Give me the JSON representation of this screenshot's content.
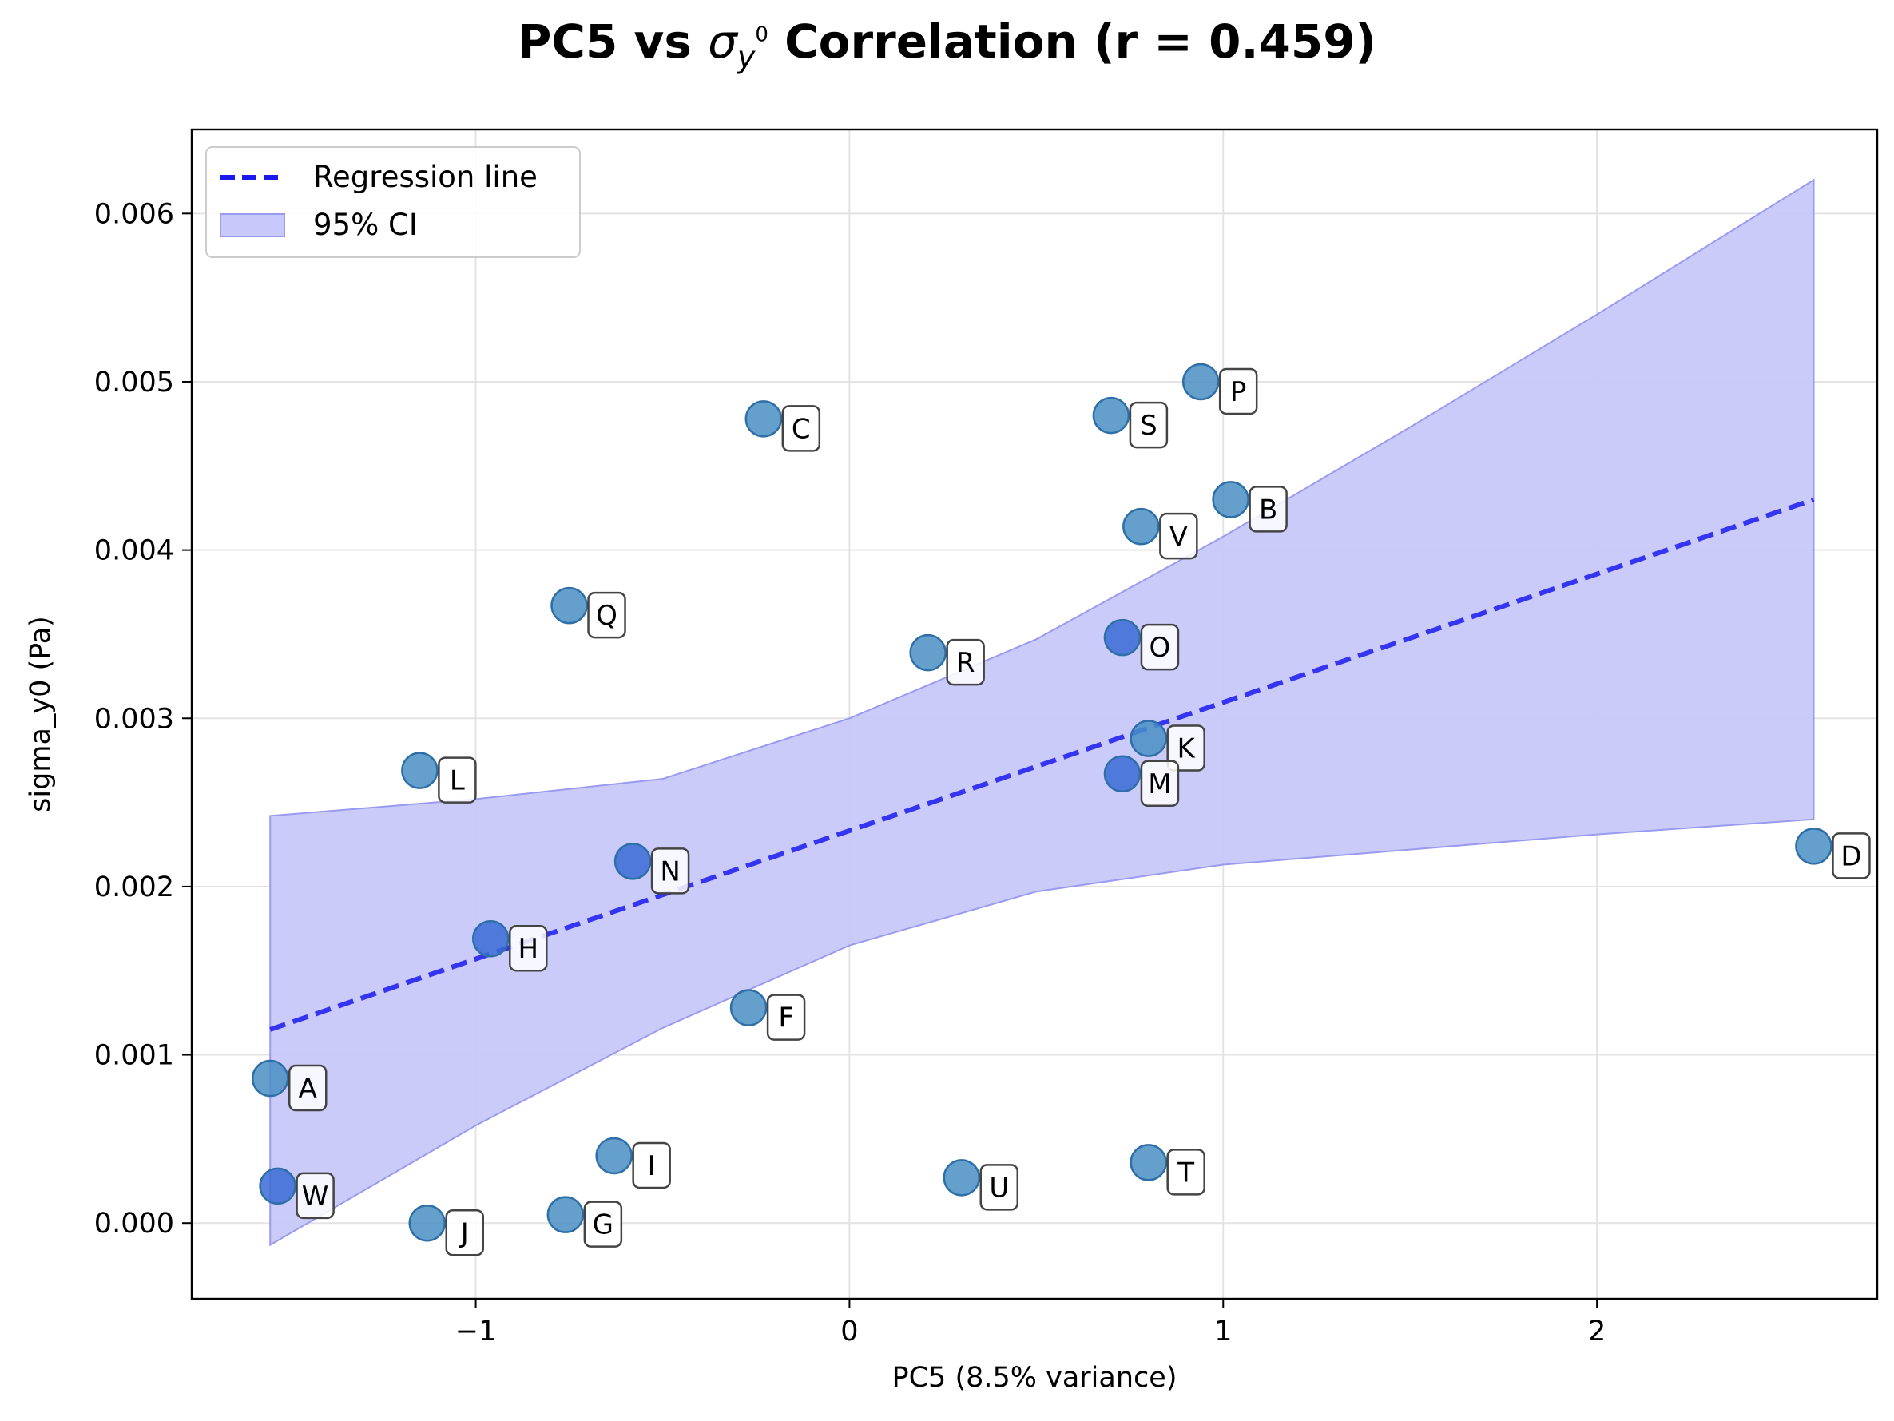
{
  "chart_data": {
    "type": "scatter",
    "title": {
      "prefix": "PC5 vs ",
      "symbol": "σ",
      "sub": "y",
      "sup": "0",
      "suffix": " Correlation (r = 0.459)"
    },
    "xlabel": "PC5 (8.5% variance)",
    "ylabel": "sigma_y0 (Pa)",
    "xlim": [
      -1.76,
      2.75
    ],
    "ylim": [
      -0.00045,
      0.0065
    ],
    "xticks": [
      {
        "value": -1,
        "label": "−1"
      },
      {
        "value": 0,
        "label": "0"
      },
      {
        "value": 1,
        "label": "1"
      },
      {
        "value": 2,
        "label": "2"
      }
    ],
    "yticks": [
      {
        "value": 0.0,
        "label": "0.000"
      },
      {
        "value": 0.001,
        "label": "0.001"
      },
      {
        "value": 0.002,
        "label": "0.002"
      },
      {
        "value": 0.003,
        "label": "0.003"
      },
      {
        "value": 0.004,
        "label": "0.004"
      },
      {
        "value": 0.005,
        "label": "0.005"
      },
      {
        "value": 0.006,
        "label": "0.006"
      }
    ],
    "grid": true,
    "legend": {
      "position": "top-left",
      "entries": [
        {
          "label": "Regression line"
        },
        {
          "label": "95% CI"
        }
      ]
    },
    "colors": {
      "point_light": "#4a8fc4",
      "point_dark": "#3a6bd4",
      "regression": "#1a1aee",
      "ci_fill": "#c8c8fa",
      "ci_edge": "#9a9af0"
    },
    "points": [
      {
        "label": "A",
        "x": -1.55,
        "y": 0.00086,
        "shade": "light"
      },
      {
        "label": "B",
        "x": 1.02,
        "y": 0.0043,
        "shade": "light"
      },
      {
        "label": "C",
        "x": -0.23,
        "y": 0.00478,
        "shade": "light"
      },
      {
        "label": "D",
        "x": 2.58,
        "y": 0.00224,
        "shade": "light"
      },
      {
        "label": "F",
        "x": -0.27,
        "y": 0.00128,
        "shade": "light"
      },
      {
        "label": "G",
        "x": -0.76,
        "y": 5e-05,
        "shade": "light"
      },
      {
        "label": "H",
        "x": -0.96,
        "y": 0.00169,
        "shade": "dark"
      },
      {
        "label": "I",
        "x": -0.63,
        "y": 0.0004,
        "shade": "light"
      },
      {
        "label": "J",
        "x": -1.13,
        "y": 0.0,
        "shade": "light"
      },
      {
        "label": "K",
        "x": 0.8,
        "y": 0.00288,
        "shade": "light"
      },
      {
        "label": "L",
        "x": -1.15,
        "y": 0.00269,
        "shade": "light"
      },
      {
        "label": "M",
        "x": 0.73,
        "y": 0.00267,
        "shade": "dark"
      },
      {
        "label": "N",
        "x": -0.58,
        "y": 0.00215,
        "shade": "dark"
      },
      {
        "label": "O",
        "x": 0.73,
        "y": 0.00348,
        "shade": "dark"
      },
      {
        "label": "P",
        "x": 0.94,
        "y": 0.005,
        "shade": "light"
      },
      {
        "label": "Q",
        "x": -0.75,
        "y": 0.00367,
        "shade": "light"
      },
      {
        "label": "R",
        "x": 0.21,
        "y": 0.00339,
        "shade": "light"
      },
      {
        "label": "S",
        "x": 0.7,
        "y": 0.0048,
        "shade": "light"
      },
      {
        "label": "T",
        "x": 0.8,
        "y": 0.00036,
        "shade": "light"
      },
      {
        "label": "U",
        "x": 0.3,
        "y": 0.00027,
        "shade": "light"
      },
      {
        "label": "V",
        "x": 0.78,
        "y": 0.00414,
        "shade": "light"
      },
      {
        "label": "W",
        "x": -1.53,
        "y": 0.00022,
        "shade": "dark"
      }
    ],
    "regression_line": {
      "x": [
        -1.55,
        2.58
      ],
      "y": [
        0.00115,
        0.0043
      ]
    },
    "confidence_band": {
      "x": [
        -1.55,
        -1.0,
        -0.5,
        0.0,
        0.5,
        1.0,
        1.5,
        2.0,
        2.58
      ],
      "lower": [
        -0.00013,
        0.00058,
        0.00116,
        0.00165,
        0.00197,
        0.00213,
        0.00222,
        0.00231,
        0.0024
      ],
      "upper": [
        0.00242,
        0.00252,
        0.00264,
        0.003,
        0.00347,
        0.00408,
        0.00473,
        0.0054,
        0.0062
      ]
    }
  }
}
